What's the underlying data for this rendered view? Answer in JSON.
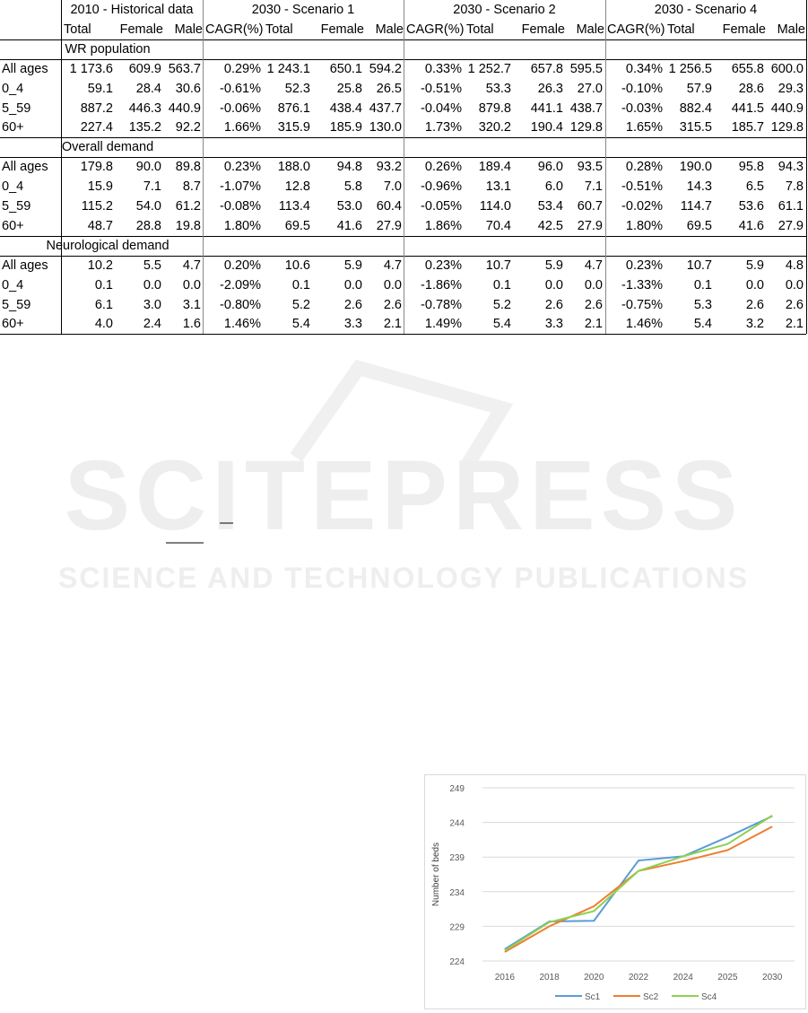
{
  "table": {
    "groups": [
      "2010 - Historical data",
      "2030 - Scenario 1",
      "2030 - Scenario 2",
      "2030 - Scenario 4"
    ],
    "subheaders": [
      "Total",
      "Female",
      "Male",
      "CAGR(%)",
      "Total",
      "Female",
      "Male",
      "CAGR(%)",
      "Total",
      "Female",
      "Male",
      "CAGR(%)",
      "Total",
      "Female",
      "Male"
    ],
    "sections": [
      {
        "title": "WR population",
        "rows": [
          [
            "All ages",
            "1 173.6",
            "609.9",
            "563.7",
            "0.29%",
            "1 243.1",
            "650.1",
            "594.2",
            "0.33%",
            "1 252.7",
            "657.8",
            "595.5",
            "0.34%",
            "1 256.5",
            "655.8",
            "600.0"
          ],
          [
            "0_4",
            "59.1",
            "28.4",
            "30.6",
            "-0.61%",
            "52.3",
            "25.8",
            "26.5",
            "-0.51%",
            "53.3",
            "26.3",
            "27.0",
            "-0.10%",
            "57.9",
            "28.6",
            "29.3"
          ],
          [
            "5_59",
            "887.2",
            "446.3",
            "440.9",
            "-0.06%",
            "876.1",
            "438.4",
            "437.7",
            "-0.04%",
            "879.8",
            "441.1",
            "438.7",
            "-0.03%",
            "882.4",
            "441.5",
            "440.9"
          ],
          [
            "60+",
            "227.4",
            "135.2",
            "92.2",
            "1.66%",
            "315.9",
            "185.9",
            "130.0",
            "1.73%",
            "320.2",
            "190.4",
            "129.8",
            "1.65%",
            "315.5",
            "185.7",
            "129.8"
          ]
        ]
      },
      {
        "title": "Overall demand",
        "rows": [
          [
            "All ages",
            "179.8",
            "90.0",
            "89.8",
            "0.23%",
            "188.0",
            "94.8",
            "93.2",
            "0.26%",
            "189.4",
            "96.0",
            "93.5",
            "0.28%",
            "190.0",
            "95.8",
            "94.3"
          ],
          [
            "0_4",
            "15.9",
            "7.1",
            "8.7",
            "-1.07%",
            "12.8",
            "5.8",
            "7.0",
            "-0.96%",
            "13.1",
            "6.0",
            "7.1",
            "-0.51%",
            "14.3",
            "6.5",
            "7.8"
          ],
          [
            "5_59",
            "115.2",
            "54.0",
            "61.2",
            "-0.08%",
            "113.4",
            "53.0",
            "60.4",
            "-0.05%",
            "114.0",
            "53.4",
            "60.7",
            "-0.02%",
            "114.7",
            "53.6",
            "61.1"
          ],
          [
            "60+",
            "48.7",
            "28.8",
            "19.8",
            "1.80%",
            "69.5",
            "41.6",
            "27.9",
            "1.86%",
            "70.4",
            "42.5",
            "27.9",
            "1.80%",
            "69.5",
            "41.6",
            "27.9"
          ]
        ]
      },
      {
        "title": "Neurological demand",
        "rows": [
          [
            "All ages",
            "10.2",
            "5.5",
            "4.7",
            "0.20%",
            "10.6",
            "5.9",
            "4.7",
            "0.23%",
            "10.7",
            "5.9",
            "4.7",
            "0.23%",
            "10.7",
            "5.9",
            "4.8"
          ],
          [
            "0_4",
            "0.1",
            "0.0",
            "0.0",
            "-2.09%",
            "0.1",
            "0.0",
            "0.0",
            "-1.86%",
            "0.1",
            "0.0",
            "0.0",
            "-1.33%",
            "0.1",
            "0.0",
            "0.0"
          ],
          [
            "5_59",
            "6.1",
            "3.0",
            "3.1",
            "-0.80%",
            "5.2",
            "2.6",
            "2.6",
            "-0.78%",
            "5.2",
            "2.6",
            "2.6",
            "-0.75%",
            "5.3",
            "2.6",
            "2.6"
          ],
          [
            "60+",
            "4.0",
            "2.4",
            "1.6",
            "1.46%",
            "5.4",
            "3.3",
            "2.1",
            "1.49%",
            "5.4",
            "3.3",
            "2.1",
            "1.46%",
            "5.4",
            "3.2",
            "2.1"
          ]
        ]
      }
    ]
  },
  "watermark": {
    "logo_text": "SCITEPRESS",
    "tagline": "SCIENCE AND TECHNOLOGY PUBLICATIONS"
  },
  "chart_data": {
    "type": "line",
    "categories": [
      "2016",
      "2018",
      "2020",
      "2022",
      "2024",
      "2025",
      "2030"
    ],
    "ylabel": "Number of beds",
    "ylim": [
      224,
      249
    ],
    "yticks": [
      224,
      229,
      234,
      239,
      244,
      249
    ],
    "grid": true,
    "legend_placement": "bottom",
    "series": [
      {
        "name": "Sc1",
        "color": "#5b9bd5",
        "values": [
          225.7,
          229.7,
          229.8,
          238.5,
          239.1,
          241.9,
          244.9
        ]
      },
      {
        "name": "Sc2",
        "color": "#ed7d31",
        "values": [
          225.3,
          229.0,
          231.9,
          237.0,
          238.4,
          240.0,
          243.4
        ]
      },
      {
        "name": "Sc4",
        "color": "#8fd14f",
        "values": [
          225.5,
          229.6,
          231.2,
          237.0,
          239.1,
          240.9,
          245.0
        ]
      }
    ]
  }
}
